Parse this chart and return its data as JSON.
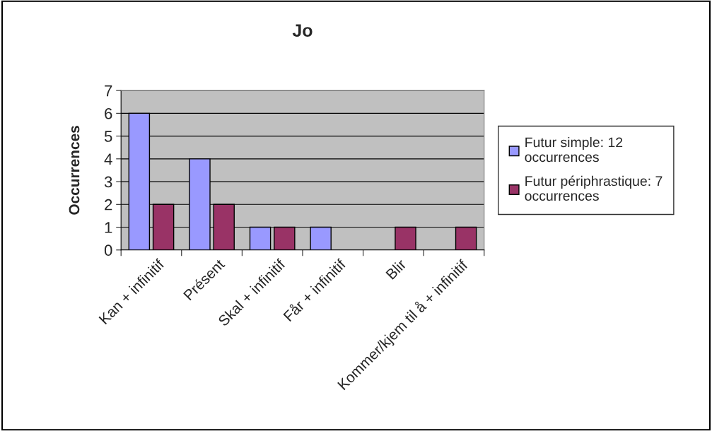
{
  "chart_data": {
    "type": "bar",
    "title": "Jo",
    "ylabel": "Occurrences",
    "categories": [
      "Kan + infinitif",
      "Présent",
      "Skal + infinitif",
      "Får + infinitif",
      "Blir",
      "Kommer/kjem til å + infinitif"
    ],
    "series": [
      {
        "name": "Futur simple: 12 occurrences",
        "color": "#9999ff",
        "values": [
          6,
          4,
          1,
          1,
          0,
          0
        ]
      },
      {
        "name": "Futur périphrastique: 7 occurrences",
        "color": "#993366",
        "values": [
          2,
          2,
          1,
          0,
          1,
          1
        ]
      }
    ],
    "ylim": [
      0,
      7
    ],
    "yticks": [
      0,
      1,
      2,
      3,
      4,
      5,
      6,
      7
    ],
    "grid": "y",
    "legend": "right"
  }
}
